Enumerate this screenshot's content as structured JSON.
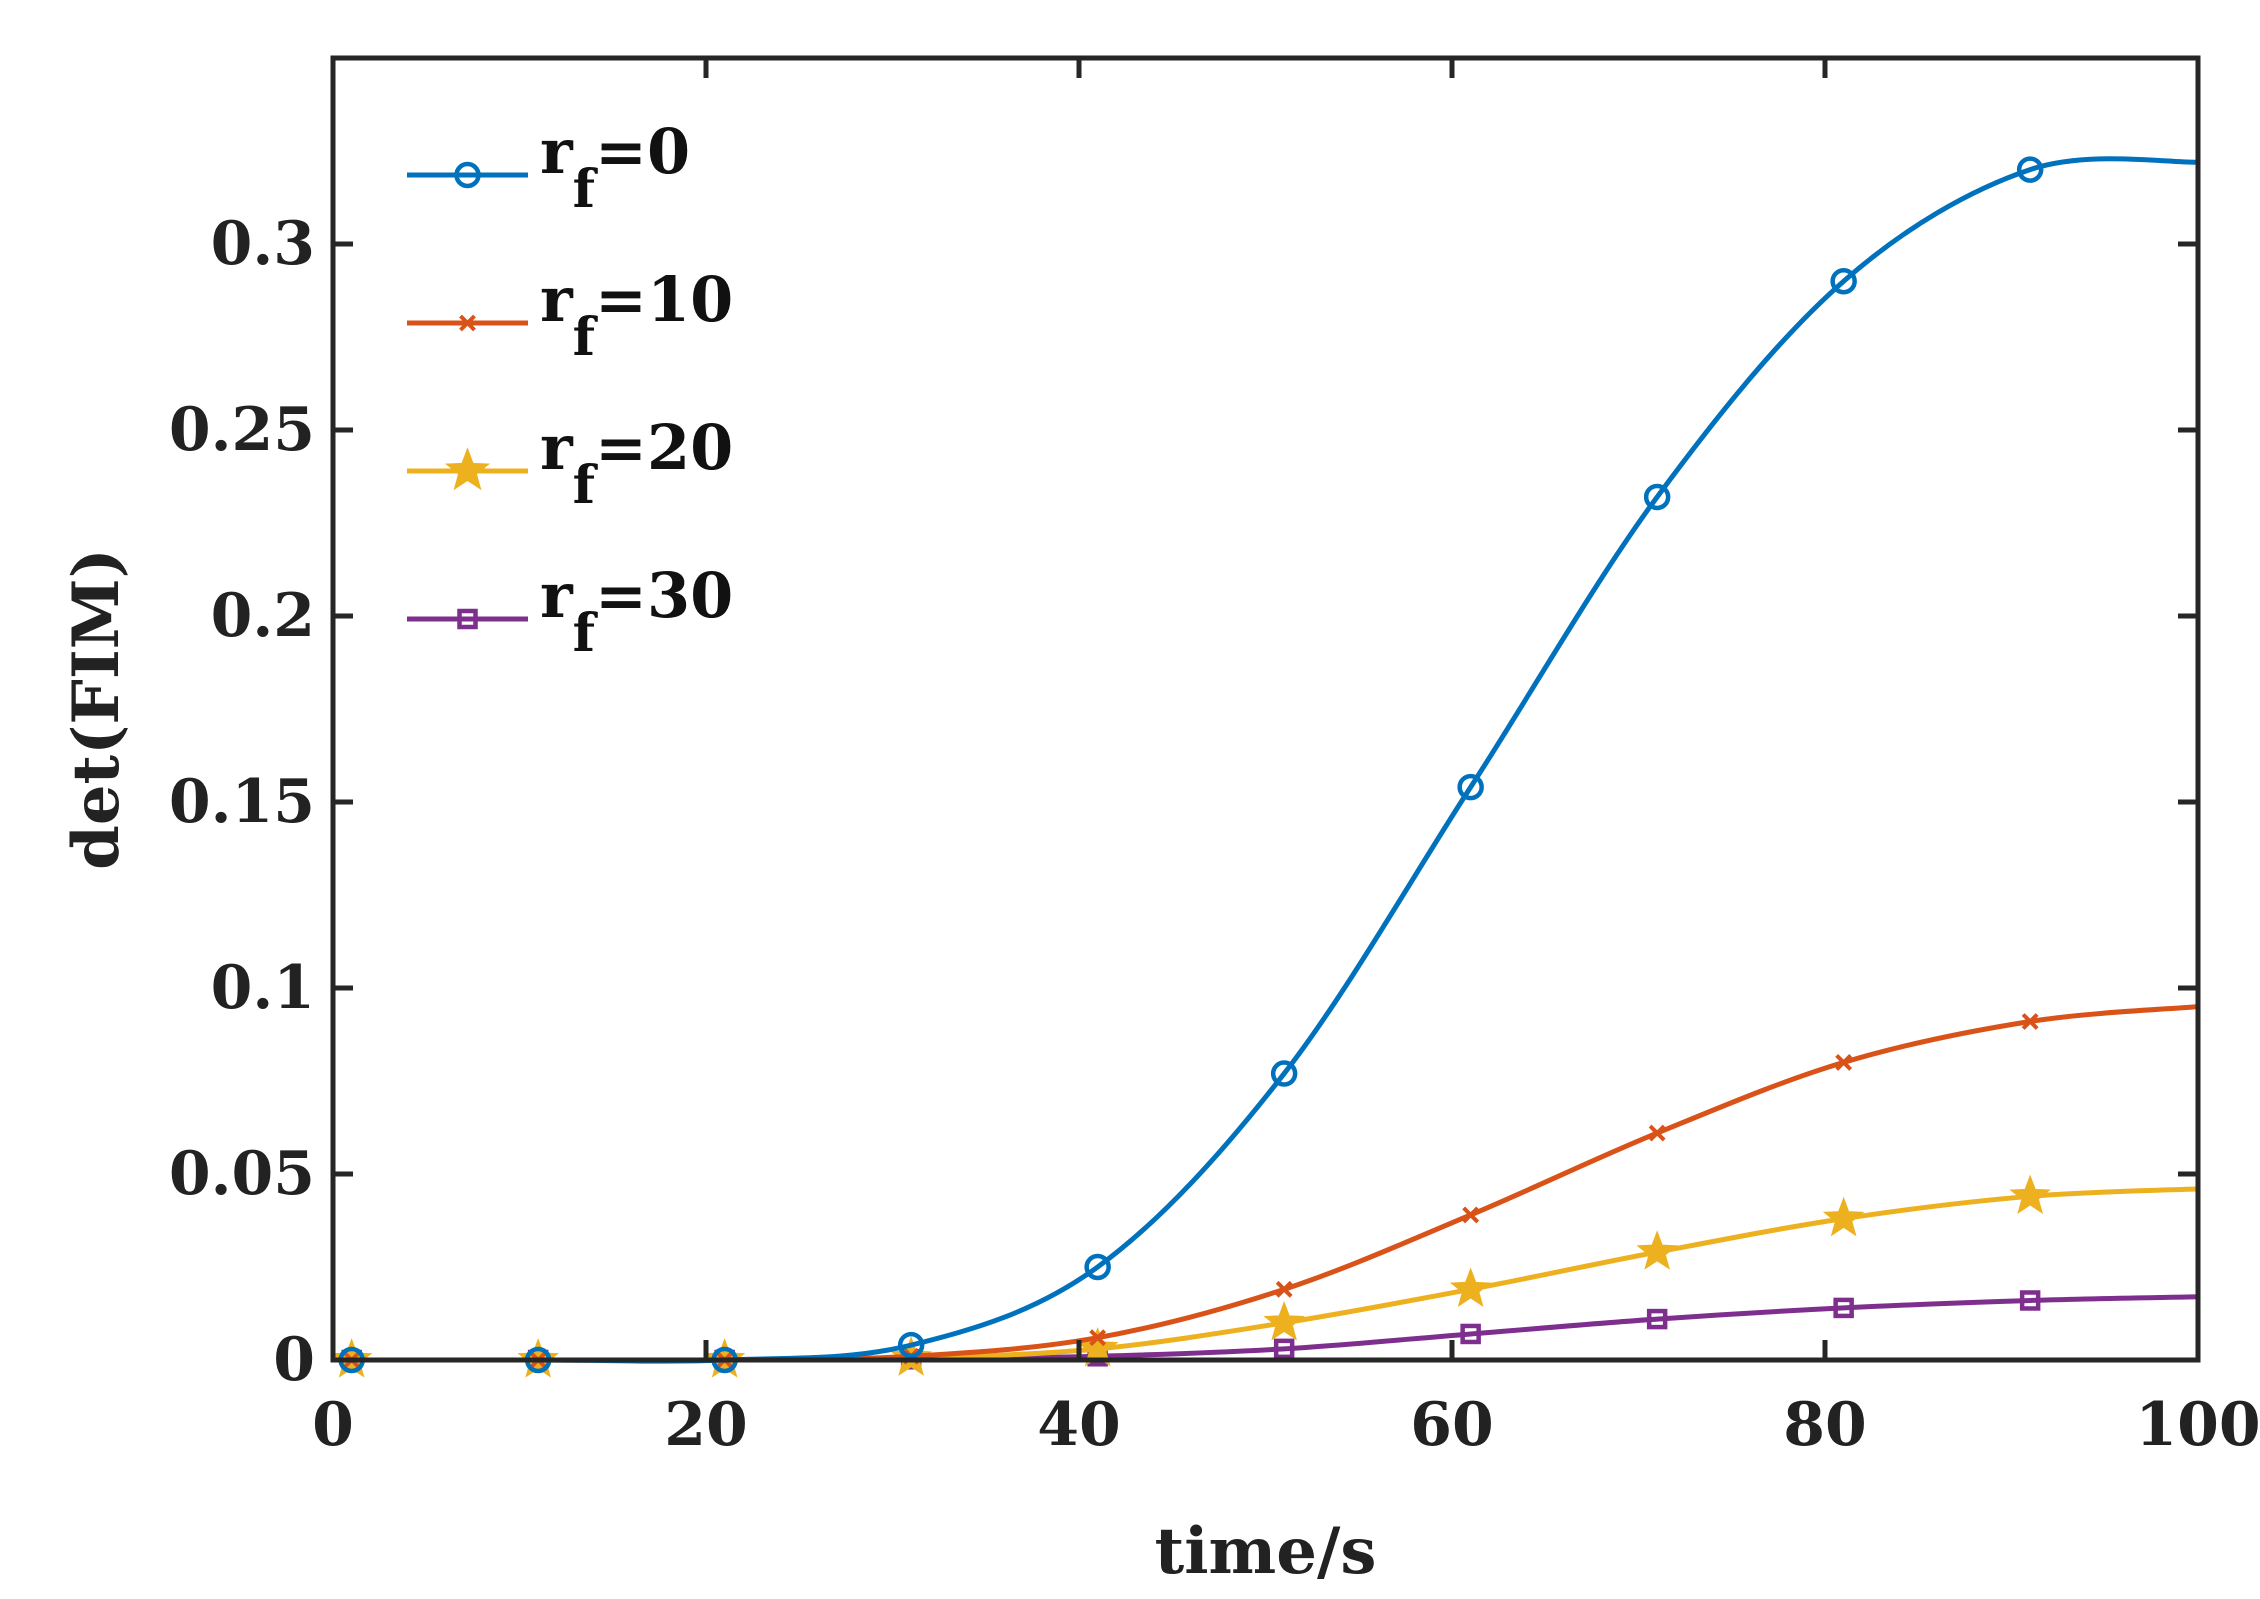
{
  "chart_data": {
    "type": "line",
    "title": "",
    "xlabel": "time/s",
    "ylabel": "det(FIM)",
    "xlim": [
      0,
      100
    ],
    "ylim": [
      0,
      0.35
    ],
    "xticks": [
      0,
      20,
      40,
      60,
      80,
      100
    ],
    "xtick_labels": [
      "0",
      "20",
      "40",
      "60",
      "80",
      "100"
    ],
    "yticks": [
      0,
      0.05,
      0.1,
      0.15,
      0.2,
      0.25,
      0.3
    ],
    "ytick_labels": [
      "0",
      "0.05",
      "0.1",
      "0.15",
      "0.2",
      "0.25",
      "0.3"
    ],
    "grid": false,
    "legend_position": "top-left",
    "x": [
      1,
      11,
      21,
      31,
      41,
      51,
      61,
      71,
      81,
      91,
      100
    ],
    "series": [
      {
        "name": "rf=0",
        "label_main": "r",
        "label_sub": "f",
        "label_tail": "=0",
        "color": "#0072BD",
        "marker": "circle",
        "values": [
          0,
          0,
          0,
          0.004,
          0.025,
          0.077,
          0.154,
          0.232,
          0.29,
          0.32,
          0.322
        ]
      },
      {
        "name": "rf=10",
        "label_main": "r",
        "label_sub": "f",
        "label_tail": "=10",
        "color": "#D95319",
        "marker": "x",
        "values": [
          0,
          0,
          0,
          0.001,
          0.006,
          0.019,
          0.039,
          0.061,
          0.08,
          0.091,
          0.095
        ]
      },
      {
        "name": "rf=20",
        "label_main": "r",
        "label_sub": "f",
        "label_tail": "=20",
        "color": "#EDB120",
        "marker": "star",
        "values": [
          0,
          0,
          0,
          0.0005,
          0.003,
          0.01,
          0.019,
          0.029,
          0.038,
          0.044,
          0.046
        ]
      },
      {
        "name": "rf=30",
        "label_main": "r",
        "label_sub": "f",
        "label_tail": "=30",
        "color": "#7E2F8E",
        "marker": "square",
        "values": [
          0,
          0,
          0,
          0.0002,
          0.001,
          0.003,
          0.007,
          0.011,
          0.014,
          0.016,
          0.017
        ]
      }
    ]
  }
}
